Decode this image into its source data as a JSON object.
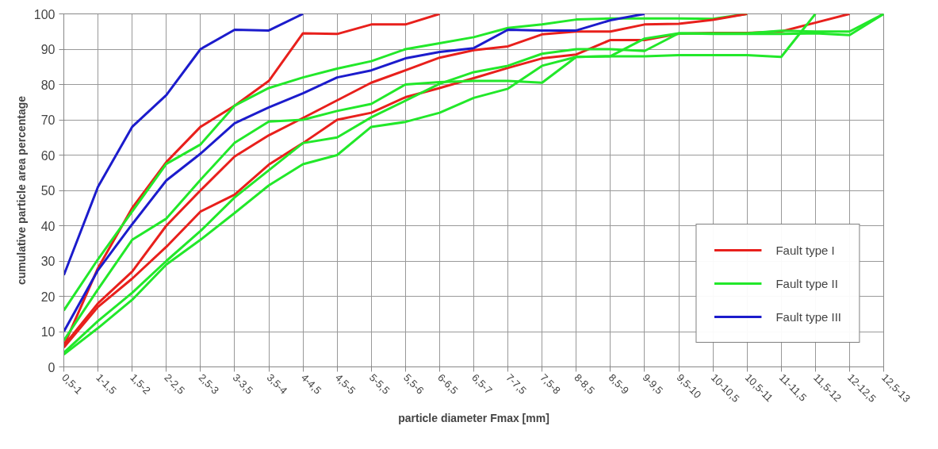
{
  "chart_data": {
    "type": "line",
    "xlabel": "particle diameter Fmax [mm]",
    "ylabel": "cumulative particle area percentage",
    "categories": [
      "0,5-1",
      "1-1,5",
      "1,5-2",
      "2-2,5",
      "2,5-3",
      "3-3,5",
      "3,5-4",
      "4-4,5",
      "4,5-5",
      "5-5,5",
      "5,5-6",
      "6-6,5",
      "6,5-7",
      "7-7,5",
      "7,5-8",
      "8-8,5",
      "8,5-9",
      "9-9,5",
      "9,5-10",
      "10-10,5",
      "10,5-11",
      "11-11,5",
      "11,5-12",
      "12-12,5",
      "12,5-13"
    ],
    "ylim": [
      0,
      100
    ],
    "yticks": [
      0,
      10,
      20,
      30,
      40,
      50,
      60,
      70,
      80,
      90,
      100
    ],
    "grid": true,
    "legend": "bottom right",
    "marker": "none",
    "line_style": "solid",
    "series": [
      {
        "name": "Fault type I",
        "color": "#e8201c",
        "values": [
          6,
          28,
          45,
          58,
          68,
          74,
          81,
          94.5,
          94.3,
          97,
          97,
          100,
          null,
          null,
          null,
          null,
          null,
          null,
          null,
          null,
          null,
          null,
          null,
          null,
          null
        ]
      },
      {
        "name": "Fault type II",
        "color": "#22e82a",
        "values": [
          16,
          30.5,
          44,
          57.5,
          63,
          74,
          79,
          82,
          84.5,
          86.6,
          90,
          91.7,
          93.4,
          96,
          97,
          98.4,
          98.7,
          98.7,
          98.7,
          98.6,
          100,
          null,
          null,
          null,
          null
        ]
      },
      {
        "name": "Fault type III",
        "color": "#1c1ccc",
        "values": [
          26,
          51,
          68,
          77,
          90,
          95.5,
          95.3,
          100,
          null,
          null,
          null,
          null,
          null,
          null,
          null,
          null,
          null,
          null,
          null,
          null,
          null,
          null,
          null,
          null,
          null
        ]
      },
      {
        "color": "#e8201c",
        "values": [
          6,
          18,
          27,
          40,
          50,
          59.6,
          65.6,
          70.5,
          75.5,
          80.5,
          84,
          87.6,
          89.7,
          90.8,
          94.2,
          95,
          95,
          97,
          97.2,
          98.3,
          100,
          null,
          null,
          null,
          null
        ]
      },
      {
        "color": "#e8201c",
        "values": [
          5.5,
          17,
          25,
          34,
          44,
          48.8,
          57.3,
          63.4,
          70,
          72,
          76.4,
          79,
          81.8,
          84.7,
          87.4,
          88.5,
          92.6,
          92.6,
          94.4,
          94.6,
          94.6,
          95,
          97.5,
          100,
          null
        ]
      },
      {
        "color": "#22e82a",
        "values": [
          7.5,
          22,
          36,
          42,
          53,
          63.5,
          69.5,
          70,
          72.5,
          74.5,
          80,
          80.7,
          81,
          81,
          80.5,
          87.8,
          88,
          88,
          88.3,
          88.3,
          88.3,
          87.8,
          100,
          null,
          null
        ]
      },
      {
        "color": "#22e82a",
        "values": [
          4,
          13,
          21,
          30,
          38.5,
          48,
          55.7,
          63.4,
          65,
          70.7,
          75.4,
          80.2,
          83.5,
          85.3,
          88.7,
          90,
          90,
          89.5,
          94.5,
          94.3,
          94.3,
          94.3,
          94.5,
          94,
          100
        ]
      },
      {
        "color": "#22e82a",
        "values": [
          3.5,
          11,
          19,
          29,
          36,
          43.6,
          51.4,
          57.4,
          60,
          68,
          69.4,
          72,
          76.2,
          78.8,
          85.3,
          87.8,
          88,
          93,
          94.5,
          94.5,
          94.5,
          95.2,
          95,
          95,
          100
        ]
      },
      {
        "color": "#1c1ccc",
        "values": [
          10,
          27.4,
          40.4,
          52.8,
          60.4,
          69,
          73.5,
          77.5,
          82,
          84,
          87.4,
          89.2,
          90.3,
          95.5,
          95.3,
          95.3,
          98.2,
          100,
          null,
          null,
          null,
          null,
          null,
          null,
          null
        ]
      }
    ]
  }
}
